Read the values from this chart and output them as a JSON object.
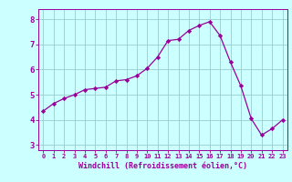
{
  "x": [
    0,
    1,
    2,
    3,
    4,
    5,
    6,
    7,
    8,
    9,
    10,
    11,
    12,
    13,
    14,
    15,
    16,
    17,
    18,
    19,
    20,
    21,
    22,
    23
  ],
  "y": [
    4.35,
    4.65,
    4.85,
    5.0,
    5.2,
    5.25,
    5.3,
    5.55,
    5.6,
    5.75,
    6.05,
    6.5,
    7.15,
    7.2,
    7.55,
    7.75,
    7.9,
    7.35,
    6.3,
    5.35,
    4.05,
    3.4,
    3.65,
    4.0
  ],
  "line_color": "#990099",
  "marker": "D",
  "marker_size": 2.2,
  "bg_color": "#ccffff",
  "grid_color": "#99cccc",
  "xlabel": "Windchill (Refroidissement éolien,°C)",
  "xlabel_color": "#990099",
  "tick_color": "#990099",
  "ylim": [
    2.8,
    8.4
  ],
  "xlim": [
    -0.5,
    23.5
  ],
  "yticks": [
    3,
    4,
    5,
    6,
    7,
    8
  ],
  "xticks": [
    0,
    1,
    2,
    3,
    4,
    5,
    6,
    7,
    8,
    9,
    10,
    11,
    12,
    13,
    14,
    15,
    16,
    17,
    18,
    19,
    20,
    21,
    22,
    23
  ]
}
